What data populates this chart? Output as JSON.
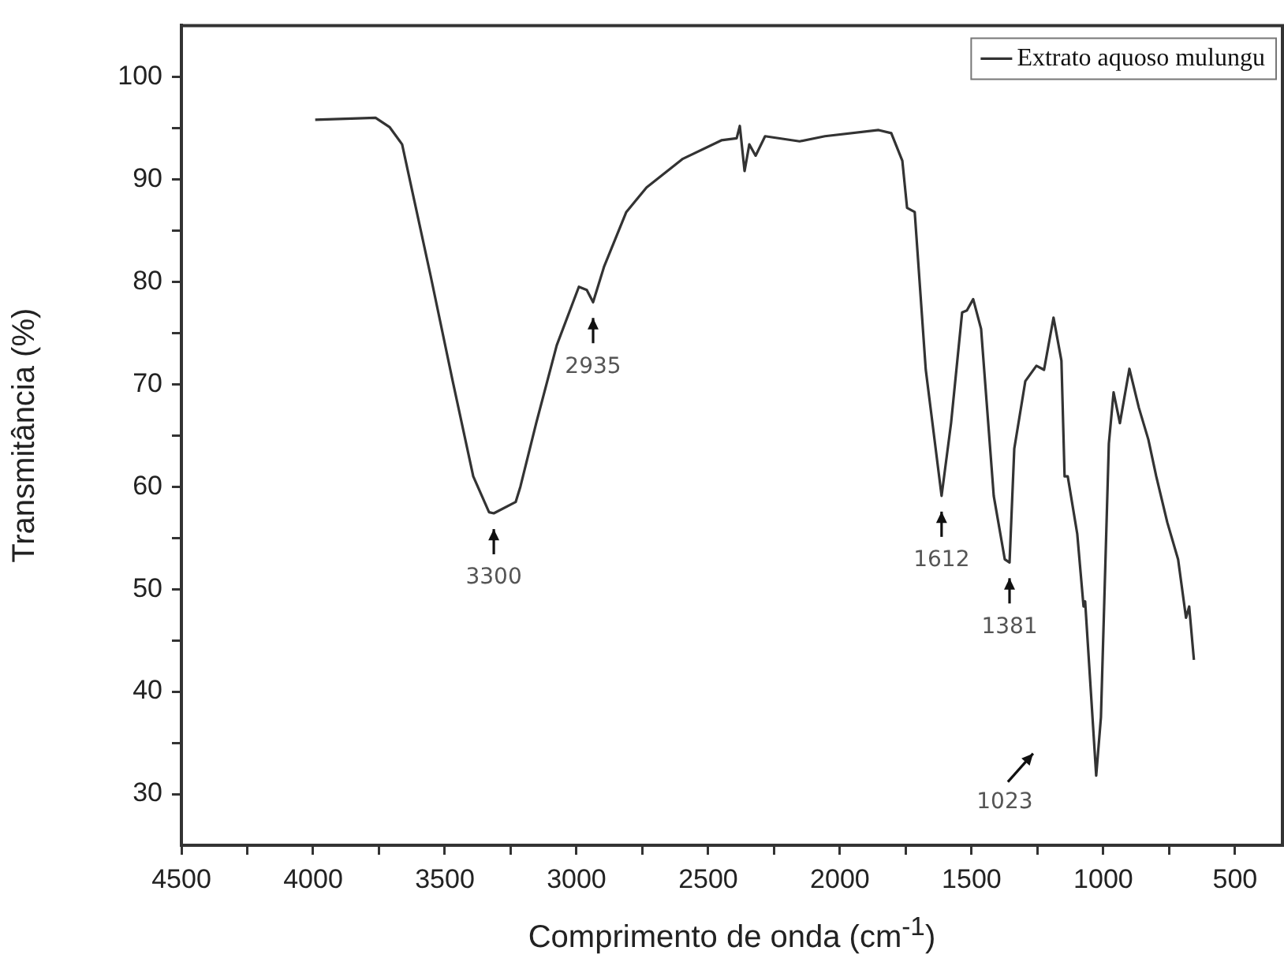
{
  "chart_data": {
    "type": "line",
    "xlabel": "Comprimento de onda (cm$^{-1}$)",
    "ylabel": "Transmitância (%)",
    "xlim": [
      4500,
      320
    ],
    "ylim": [
      25,
      105
    ],
    "xticks": [
      4500,
      {
        "value": 4250,
        "label": null
      },
      4000,
      {
        "value": 3750,
        "label": null
      },
      3500,
      {
        "value": 3250,
        "label": null
      },
      3000,
      {
        "value": 2750,
        "label": null
      },
      2500,
      {
        "value": 2250,
        "label": null
      },
      2000,
      {
        "value": 1750,
        "label": null
      },
      1500,
      {
        "value": 1250,
        "label": null
      },
      1000,
      {
        "value": 750,
        "label": null
      },
      500
    ],
    "yticks": [
      30,
      {
        "value": 35,
        "label": null
      },
      40,
      {
        "value": 45,
        "label": null
      },
      50,
      {
        "value": 55,
        "label": null
      },
      60,
      {
        "value": 65,
        "label": null
      },
      70,
      {
        "value": 75,
        "label": null
      },
      80,
      {
        "value": 85,
        "label": null
      },
      90,
      {
        "value": 95,
        "label": null
      },
      100
    ],
    "grid": false,
    "legend": "top right",
    "marker": "none",
    "line_style": "solid",
    "series": [
      {
        "name": "Extrato aquoso mulungu",
        "color": "#333333",
        "x": [
          3992,
          3763,
          3710,
          3662,
          3614,
          3554,
          3470,
          3392,
          3332,
          3314,
          3231,
          3213,
          3153,
          3075,
          2991,
          2961,
          2937,
          2895,
          2811,
          2734,
          2596,
          2450,
          2392,
          2380,
          2362,
          2344,
          2320,
          2284,
          2153,
          2057,
          1853,
          1805,
          1763,
          1745,
          1716,
          1674,
          1614,
          1578,
          1536,
          1518,
          1494,
          1464,
          1416,
          1374,
          1356,
          1338,
          1296,
          1254,
          1225,
          1189,
          1159,
          1147,
          1135,
          1099,
          1075,
          1069,
          1027,
          1009,
          979,
          961,
          937,
          901,
          865,
          829,
          799,
          757,
          716,
          686,
          674,
          656
        ],
        "values": [
          95.8,
          96,
          95.1,
          93.4,
          87.7,
          80.6,
          70.3,
          61,
          57.5,
          57.4,
          58.5,
          60,
          66.2,
          73.8,
          79.5,
          79.2,
          78,
          81.5,
          86.8,
          89.2,
          92,
          93.8,
          94,
          95.2,
          90.8,
          93.4,
          92.3,
          94.2,
          93.7,
          94.2,
          94.8,
          94.5,
          91.8,
          87.2,
          86.8,
          71.4,
          59.1,
          66.2,
          77,
          77.2,
          78.3,
          75.4,
          59.1,
          52.9,
          52.6,
          63.7,
          70.3,
          71.8,
          71.4,
          76.5,
          72.3,
          61,
          61,
          55.4,
          48.3,
          48.8,
          31.8,
          37.5,
          64.2,
          69.2,
          66.2,
          71.5,
          67.7,
          64.6,
          61,
          56.5,
          52.9,
          47.2,
          48.3,
          43.1
        ]
      }
    ],
    "annotations": [
      {
        "text": "3300",
        "x": 3314,
        "y": 57.4
      },
      {
        "text": "2935",
        "x": 2937,
        "y": 78
      },
      {
        "text": "1612",
        "x": 1614,
        "y": 59.1
      },
      {
        "text": "1381",
        "x": 1356,
        "y": 52.6
      },
      {
        "text": "1023",
        "x": 1027,
        "y": 31.8
      }
    ]
  }
}
